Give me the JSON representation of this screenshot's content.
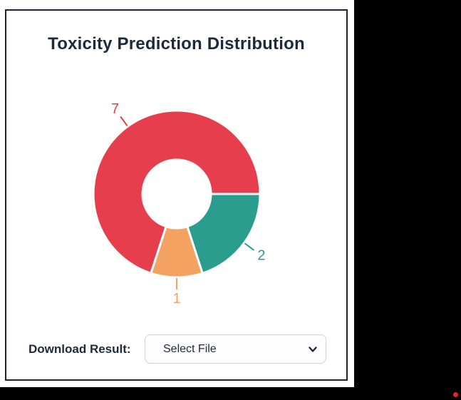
{
  "page": {
    "background_color": "#000000",
    "content_background": "#ffffff",
    "cursor_dot_color": "#d92b2b"
  },
  "card": {
    "border_color": "#1c2430",
    "background": "#ffffff"
  },
  "chart_data": {
    "type": "pie",
    "variant": "donut",
    "title": "Toxicity Prediction Distribution",
    "values": [
      7,
      2,
      1
    ],
    "labels": [
      "7",
      "2",
      "1"
    ],
    "colors": [
      "#e63e4d",
      "#2a9d8f",
      "#f4a261"
    ],
    "start_angle_clockwise_from_top_deg": 198,
    "inner_radius_ratio": 0.41,
    "legend": "none",
    "callout_labels": true,
    "segment_border_color": "#ffffff",
    "title_color": "#1e293b"
  },
  "download": {
    "label": "Download Result:",
    "selected_option": "Select File"
  }
}
